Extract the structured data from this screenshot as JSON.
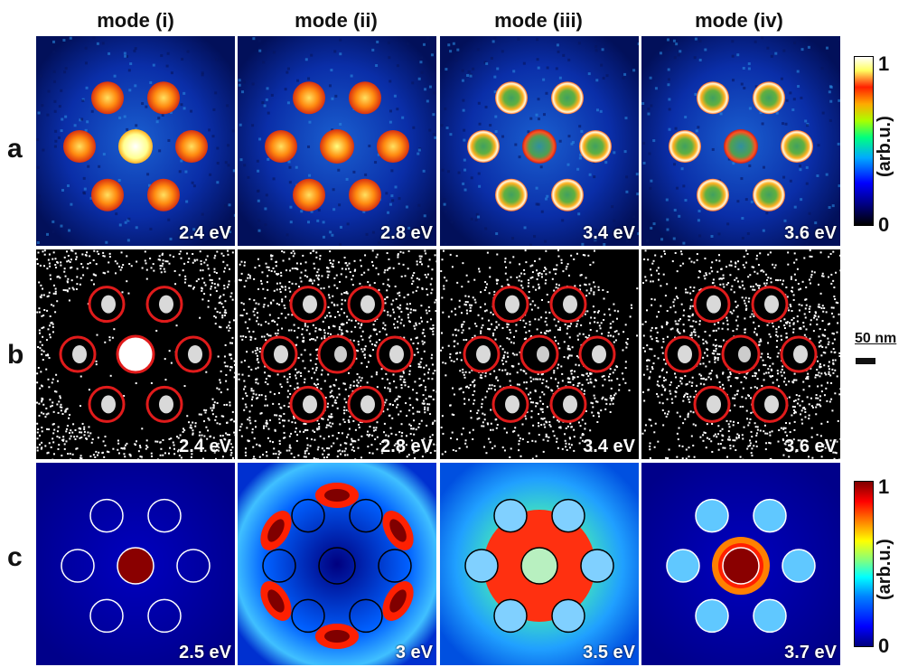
{
  "column_titles": [
    "mode (i)",
    "mode (ii)",
    "mode (iii)",
    "mode (iv)"
  ],
  "row_labels": [
    "a",
    "b",
    "c"
  ],
  "row_a_energies": [
    "2.4 eV",
    "2.8 eV",
    "3.4 eV",
    "3.6 eV"
  ],
  "row_b_energies": [
    "2.4 eV",
    "2.8 eV",
    "3.4 eV",
    "3.6 eV"
  ],
  "row_c_energies": [
    "2.5 eV",
    "3 eV",
    "3.5 eV",
    "3.7 eV"
  ],
  "colorbar_top": {
    "max": "1",
    "min": "0",
    "unit": "(arb.u.)"
  },
  "colorbar_bottom": {
    "max": "1",
    "min": "0",
    "unit": "(arb.u.)"
  },
  "scale_bar": {
    "label": "50 nm"
  },
  "colors": {
    "jet_low": "#00007f",
    "jet_high": "#7f0000",
    "circle_red": "#e01b1b"
  }
}
